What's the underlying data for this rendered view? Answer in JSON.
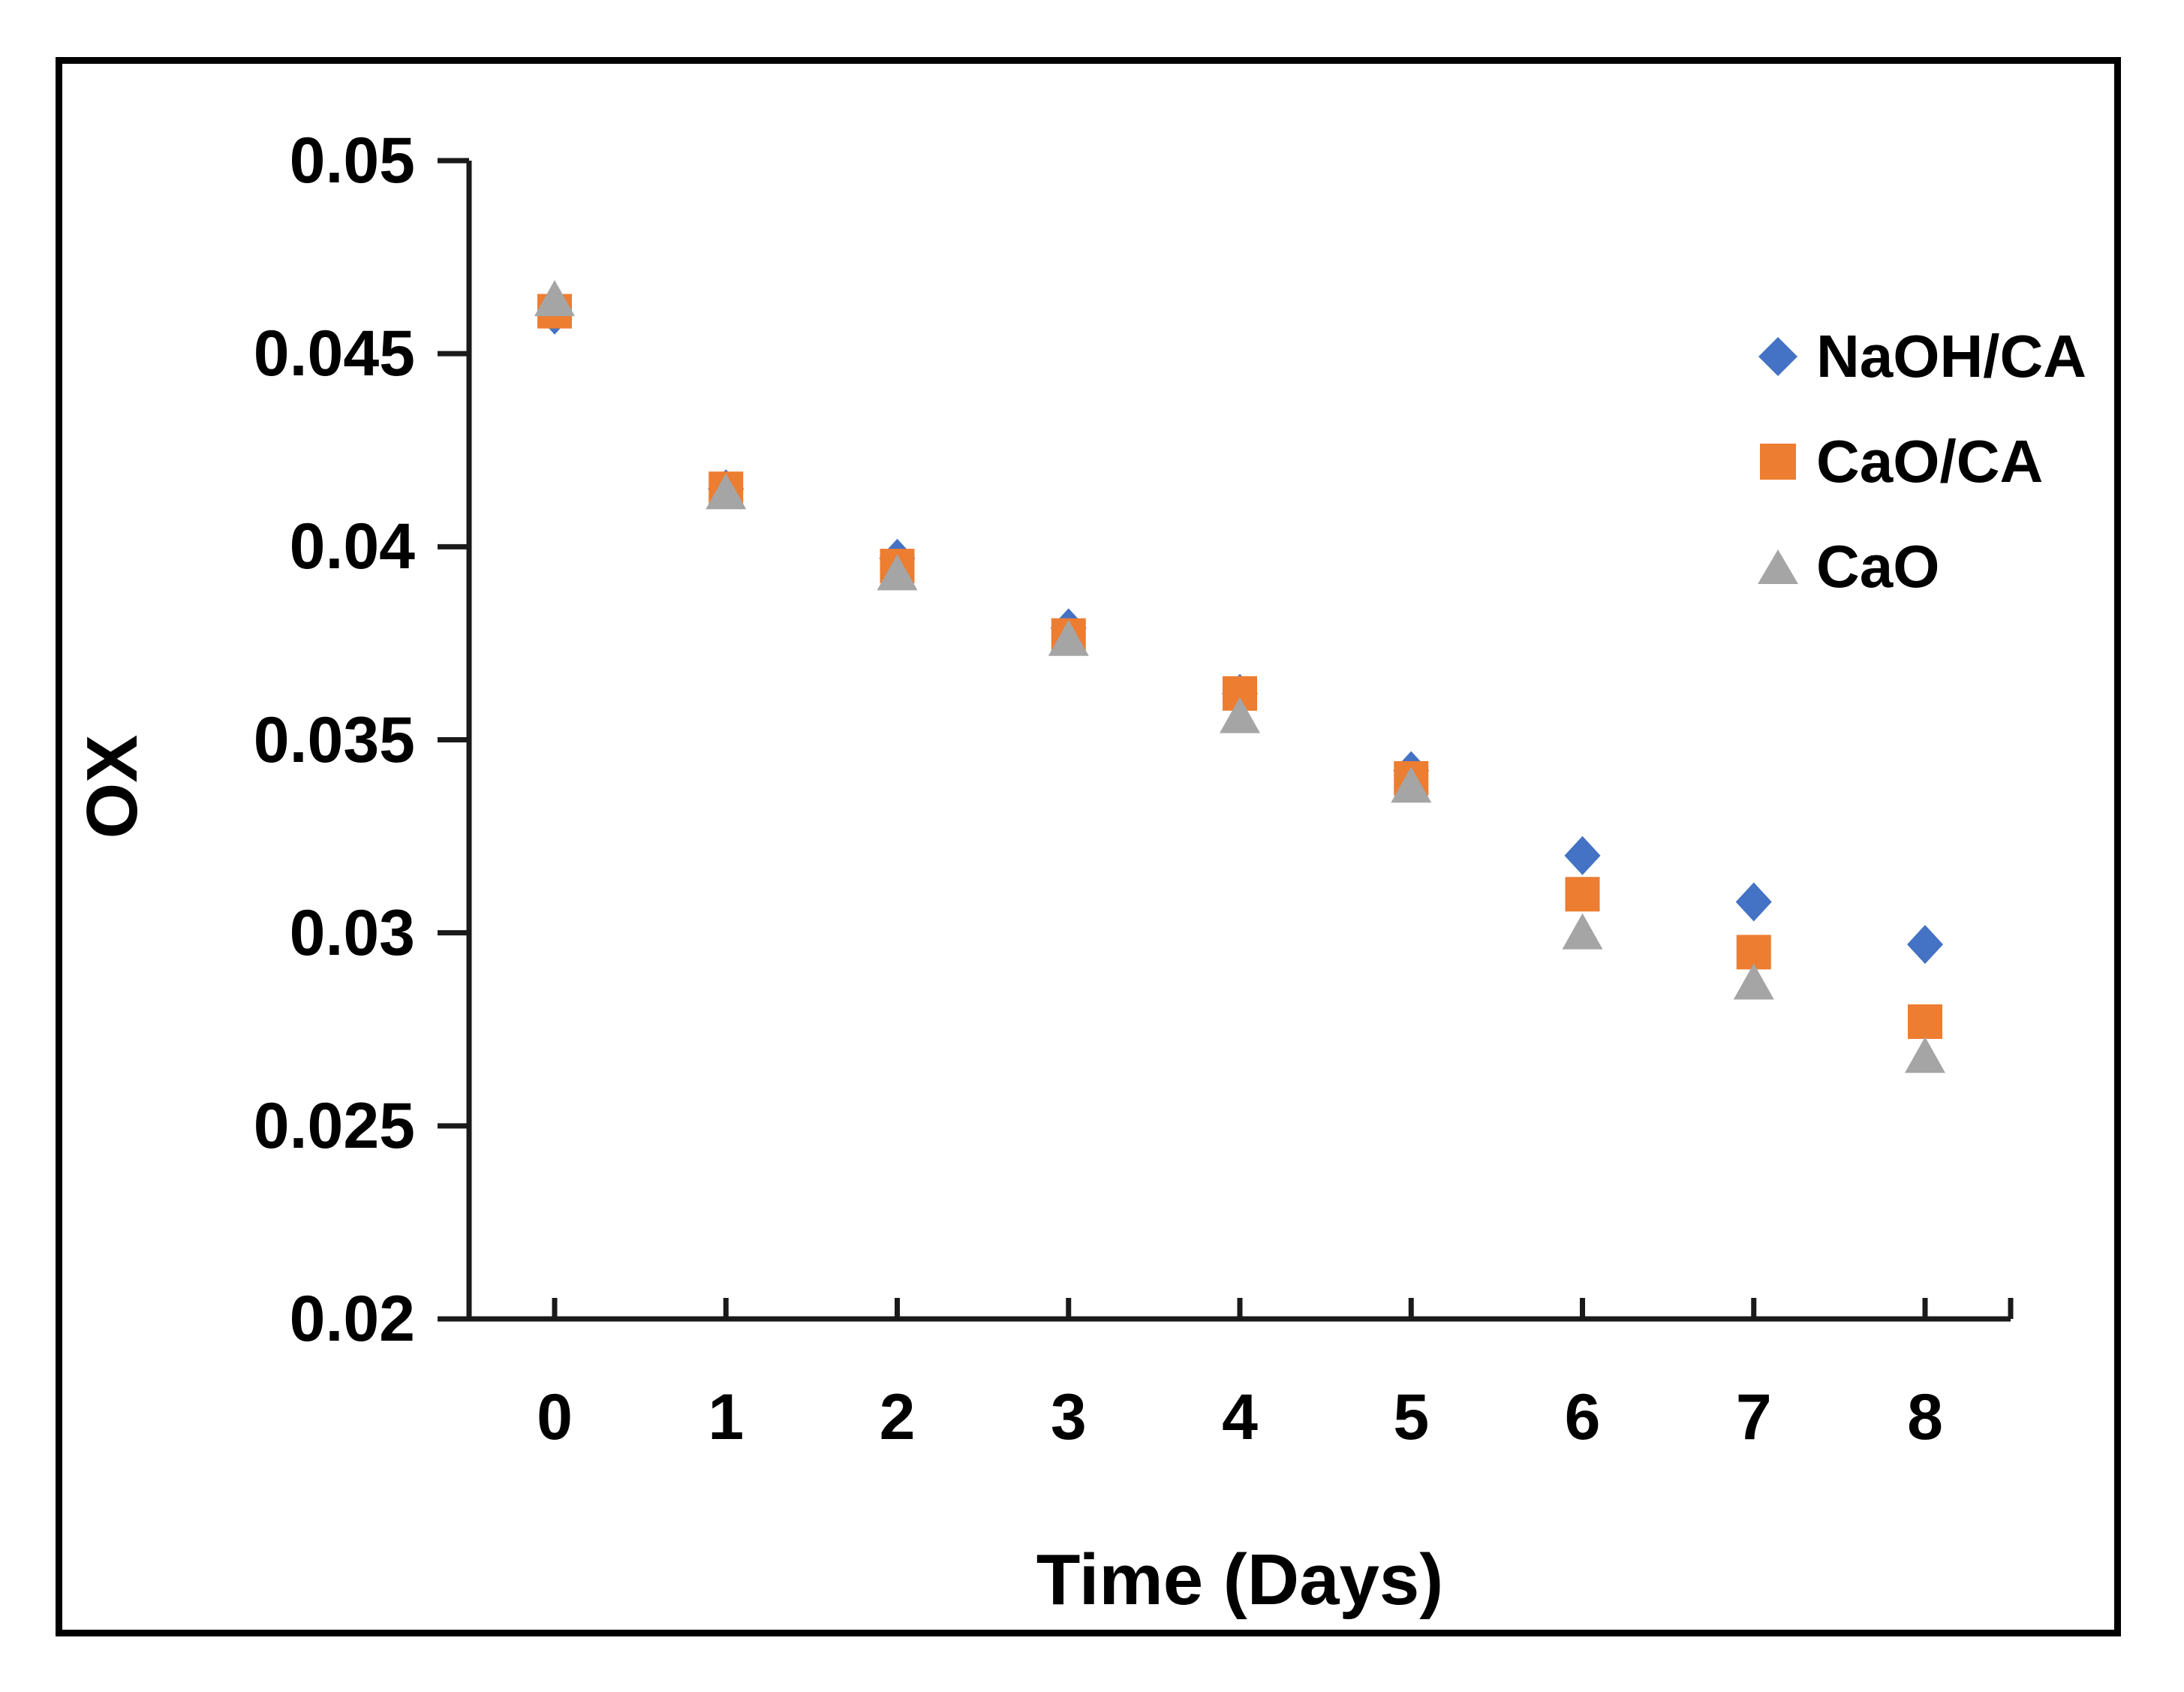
{
  "figure": {
    "background": "#ffffff",
    "border_color": "#000000",
    "axis_color": "#1a1a1a",
    "text_color": "#000000"
  },
  "chart_data": {
    "type": "scatter",
    "title": "",
    "xlabel": "Time (Days)",
    "ylabel": "OX",
    "x": [
      0,
      1,
      2,
      3,
      4,
      5,
      6,
      7,
      8
    ],
    "x_tick_labels": [
      "0",
      "1",
      "2",
      "3",
      "4",
      "5",
      "6",
      "7",
      "8"
    ],
    "y_tick_labels": [
      "0.05",
      "0.045",
      "0.04",
      "0.035",
      "0.03",
      "0.025",
      "0.02"
    ],
    "ylim": [
      0.02,
      0.05
    ],
    "xlim": [
      -0.5,
      8.5
    ],
    "grid": false,
    "legend_position": "right",
    "series": [
      {
        "name": "NaOH/CA",
        "marker": "diamond",
        "color": "#4472C4",
        "values": [
          0.046,
          0.0415,
          0.0397,
          0.0379,
          0.0362,
          0.0342,
          0.032,
          0.0308,
          0.0297
        ]
      },
      {
        "name": "CaO/CA",
        "marker": "square",
        "color": "#ED7D31",
        "values": [
          0.0461,
          0.0415,
          0.0395,
          0.0377,
          0.0362,
          0.034,
          0.031,
          0.0295,
          0.0277
        ]
      },
      {
        "name": "CaO",
        "marker": "triangle",
        "color": "#A5A5A5",
        "values": [
          0.0464,
          0.0414,
          0.0393,
          0.0376,
          0.0356,
          0.0338,
          0.03,
          0.0287,
          0.0268
        ]
      }
    ]
  }
}
